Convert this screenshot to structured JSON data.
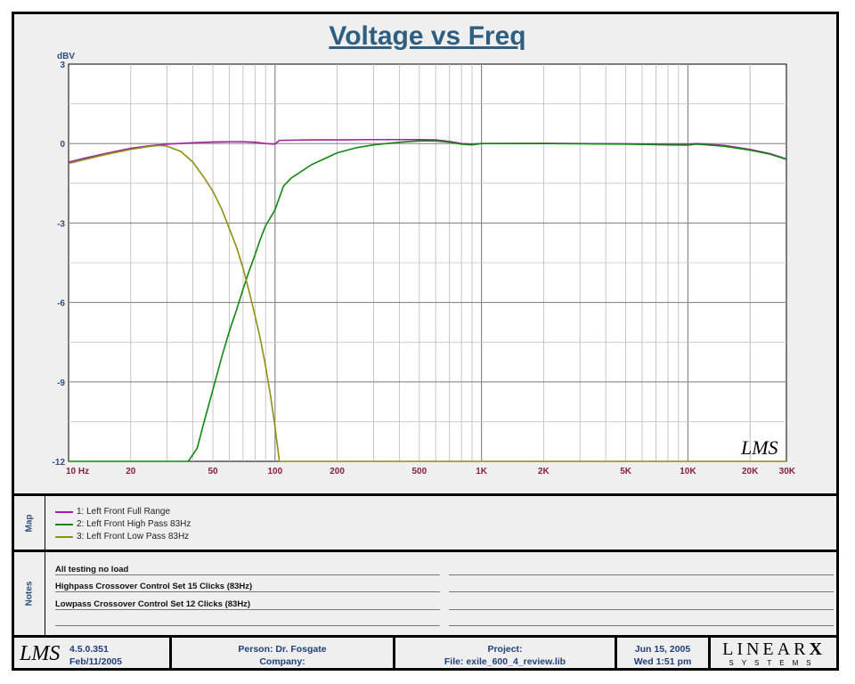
{
  "chart_data": {
    "type": "line",
    "title": "Voltage vs Freq",
    "ylabel": "dBV",
    "x_scale": "log",
    "xlim": [
      10,
      30000
    ],
    "ylim": [
      -12,
      3
    ],
    "y_ticks": [
      3,
      0,
      -3,
      -6,
      -9,
      -12
    ],
    "y_tick_labels": [
      "3",
      "0",
      "-3",
      "-6",
      "-9",
      "-12"
    ],
    "x_ticks": [
      10,
      20,
      50,
      100,
      200,
      500,
      1000,
      2000,
      5000,
      10000,
      20000,
      30000
    ],
    "x_tick_labels": [
      "10  Hz",
      "20",
      "50",
      "100",
      "200",
      "500",
      "1K",
      "2K",
      "5K",
      "10K",
      "20K",
      "30K"
    ],
    "grid": true,
    "series": [
      {
        "name": "1: Left Front Full Range",
        "color": "#a020a0",
        "points": [
          [
            10,
            -0.7
          ],
          [
            12,
            -0.55
          ],
          [
            15,
            -0.38
          ],
          [
            20,
            -0.18
          ],
          [
            25,
            -0.08
          ],
          [
            30,
            -0.02
          ],
          [
            40,
            0.03
          ],
          [
            50,
            0.06
          ],
          [
            60,
            0.07
          ],
          [
            70,
            0.07
          ],
          [
            80,
            0.05
          ],
          [
            90,
            0.0
          ],
          [
            100,
            -0.02
          ],
          [
            105,
            0.12
          ],
          [
            150,
            0.14
          ],
          [
            200,
            0.14
          ],
          [
            300,
            0.15
          ],
          [
            400,
            0.15
          ],
          [
            500,
            0.15
          ],
          [
            600,
            0.14
          ],
          [
            700,
            0.08
          ],
          [
            800,
            0.0
          ],
          [
            900,
            -0.03
          ],
          [
            1000,
            0.0
          ],
          [
            2000,
            0.01
          ],
          [
            3000,
            0.0
          ],
          [
            5000,
            -0.01
          ],
          [
            8000,
            -0.03
          ],
          [
            10000,
            -0.03
          ],
          [
            11000,
            0.0
          ],
          [
            15000,
            -0.07
          ],
          [
            20000,
            -0.22
          ],
          [
            25000,
            -0.38
          ],
          [
            30000,
            -0.58
          ]
        ]
      },
      {
        "name": "2: Left Front High Pass 83Hz",
        "color": "#118811",
        "points": [
          [
            10,
            -12
          ],
          [
            38,
            -12
          ],
          [
            42,
            -11.5
          ],
          [
            45,
            -10.6
          ],
          [
            50,
            -9.3
          ],
          [
            55,
            -8.1
          ],
          [
            60,
            -7.1
          ],
          [
            65,
            -6.3
          ],
          [
            70,
            -5.5
          ],
          [
            75,
            -4.8
          ],
          [
            80,
            -4.2
          ],
          [
            85,
            -3.6
          ],
          [
            90,
            -3.1
          ],
          [
            95,
            -2.8
          ],
          [
            100,
            -2.5
          ],
          [
            110,
            -1.6
          ],
          [
            120,
            -1.3
          ],
          [
            150,
            -0.8
          ],
          [
            200,
            -0.35
          ],
          [
            250,
            -0.15
          ],
          [
            300,
            -0.05
          ],
          [
            400,
            0.05
          ],
          [
            500,
            0.1
          ],
          [
            600,
            0.1
          ],
          [
            700,
            0.05
          ],
          [
            800,
            -0.02
          ],
          [
            900,
            -0.05
          ],
          [
            1000,
            0.0
          ],
          [
            2000,
            0.0
          ],
          [
            5000,
            -0.02
          ],
          [
            8000,
            -0.05
          ],
          [
            10000,
            -0.06
          ],
          [
            11000,
            -0.02
          ],
          [
            15000,
            -0.1
          ],
          [
            20000,
            -0.25
          ],
          [
            25000,
            -0.4
          ],
          [
            30000,
            -0.6
          ]
        ]
      },
      {
        "name": "3: Left Front Low Pass 83Hz",
        "color": "#8f8f10",
        "points": [
          [
            10,
            -0.75
          ],
          [
            12,
            -0.6
          ],
          [
            15,
            -0.42
          ],
          [
            20,
            -0.22
          ],
          [
            25,
            -0.1
          ],
          [
            28,
            -0.07
          ],
          [
            30,
            -0.1
          ],
          [
            35,
            -0.3
          ],
          [
            40,
            -0.7
          ],
          [
            45,
            -1.25
          ],
          [
            50,
            -1.8
          ],
          [
            55,
            -2.45
          ],
          [
            60,
            -3.2
          ],
          [
            65,
            -3.9
          ],
          [
            70,
            -4.7
          ],
          [
            75,
            -5.6
          ],
          [
            80,
            -6.5
          ],
          [
            85,
            -7.4
          ],
          [
            90,
            -8.4
          ],
          [
            95,
            -9.5
          ],
          [
            100,
            -10.7
          ],
          [
            105,
            -12
          ],
          [
            30000,
            -12
          ]
        ]
      }
    ]
  },
  "legend_header": "Map",
  "notes_header": "Notes",
  "notes": [
    "All testing no load",
    "Highpass Crossover Control Set 15 Clicks (83Hz)",
    "Lowpass Crossover Control Set 12 Clicks (83Hz)"
  ],
  "footer": {
    "logo": "LMS",
    "version": "4.5.0.351",
    "build_date": "Feb/11/2005",
    "person": "Person: Dr. Fosgate",
    "company": "Company:",
    "project": "Project:",
    "file": "File: exile_600_4_review.lib",
    "date": "Jun 15, 2005",
    "time": "Wed  1:51 pm",
    "brand_top": "LINEAR",
    "brand_x": "X",
    "brand_bottom": "SYSTEMS"
  },
  "watermark": "LMS"
}
